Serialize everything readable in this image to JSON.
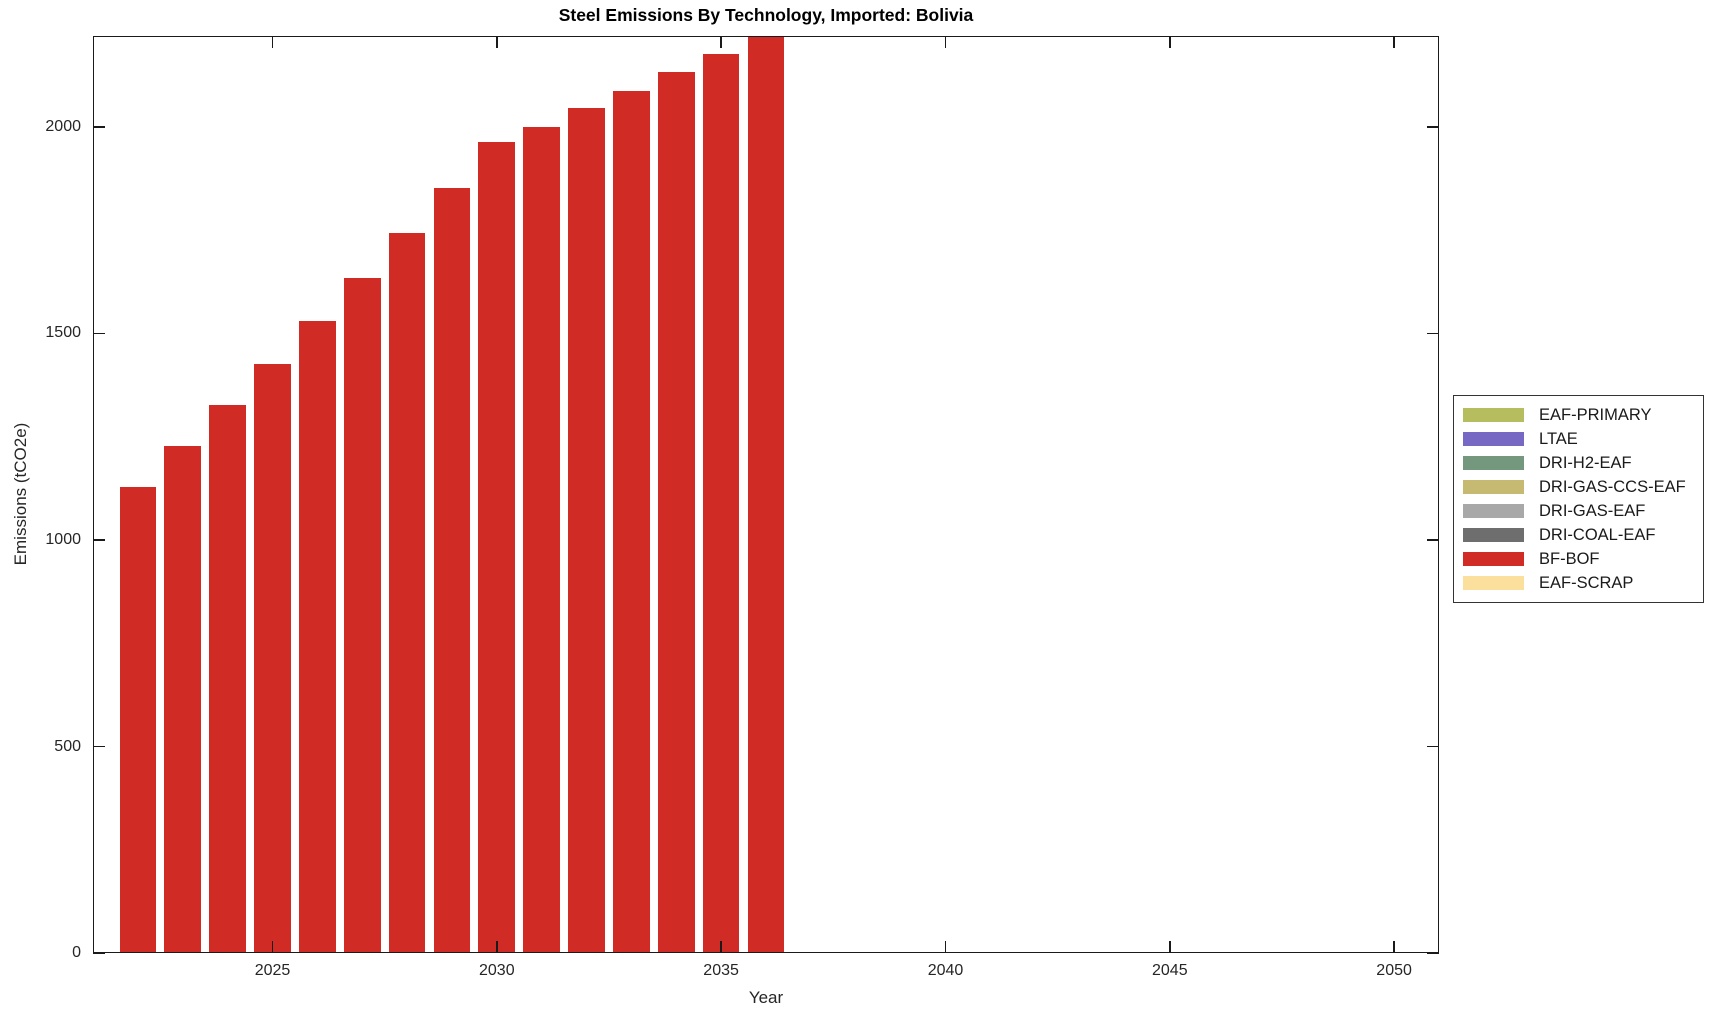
{
  "chart_data": {
    "type": "bar",
    "title": "Steel Emissions By Technology, Imported: Bolivia",
    "xlabel": "Year",
    "ylabel": "Emissions (tCO2e)",
    "xlim": [
      2021,
      2051
    ],
    "ylim": [
      0,
      2220
    ],
    "x_ticks": [
      2025,
      2030,
      2035,
      2040,
      2045,
      2050
    ],
    "y_ticks": [
      0,
      500,
      1000,
      1500,
      2000
    ],
    "grid": false,
    "bar_width_years": 0.82,
    "axis_color": "#1a1a1a",
    "text_color": "#262626",
    "legend": {
      "position": "outside-right",
      "entries": [
        {
          "label": "EAF-PRIMARY",
          "color": "#b5bd5f"
        },
        {
          "label": "LTAE",
          "color": "#7768c4"
        },
        {
          "label": "DRI-H2-EAF",
          "color": "#74987d"
        },
        {
          "label": "DRI-GAS-CCS-EAF",
          "color": "#c6ba72"
        },
        {
          "label": "DRI-GAS-EAF",
          "color": "#a8a8a8"
        },
        {
          "label": "DRI-COAL-EAF",
          "color": "#6e6e6e"
        },
        {
          "label": "BF-BOF",
          "color": "#d02b25"
        },
        {
          "label": "EAF-SCRAP",
          "color": "#fbe09d"
        }
      ]
    },
    "series": [
      {
        "name": "BF-BOF",
        "color": "#d02b25",
        "x": [
          2022,
          2023,
          2024,
          2025,
          2026,
          2027,
          2028,
          2029,
          2030,
          2031,
          2032,
          2033,
          2034,
          2035,
          2036
        ],
        "values": [
          1128,
          1228,
          1328,
          1427,
          1530,
          1634,
          1742,
          1851,
          1963,
          2001,
          2045,
          2088,
          2132,
          2177,
          2220
        ]
      }
    ]
  }
}
